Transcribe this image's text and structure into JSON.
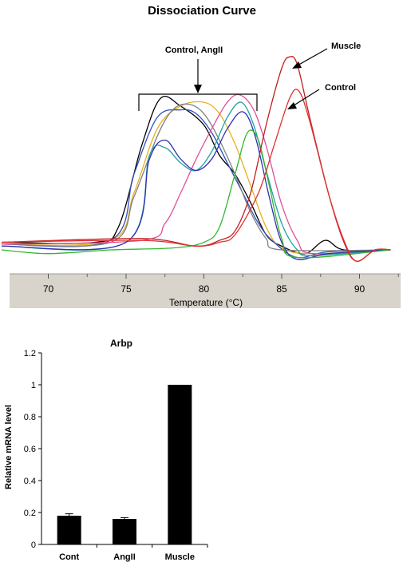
{
  "chart_data": [
    {
      "type": "line",
      "title": "Dissociation Curve",
      "xlabel": "Temperature (°C)",
      "ylabel": "",
      "xlim": [
        67,
        92.5
      ],
      "x_ticks": [
        70,
        75,
        80,
        85,
        90
      ],
      "grid": false,
      "annotations": {
        "bracket_label": "Control, AngII",
        "muscle_label": "Muscle",
        "control_label": "Control"
      },
      "series": [
        {
          "color": "#000000",
          "points": [
            [
              67,
              0.04
            ],
            [
              73,
              0.04
            ],
            [
              74.5,
              0.12
            ],
            [
              76,
              0.55
            ],
            [
              77.2,
              0.8
            ],
            [
              78.5,
              0.76
            ],
            [
              80,
              0.66
            ],
            [
              81,
              0.5
            ],
            [
              82,
              0.4
            ],
            [
              83,
              0.25
            ],
            [
              84,
              0.08
            ],
            [
              85,
              0.02
            ],
            [
              86.5,
              -0.02
            ],
            [
              87.8,
              0.05
            ],
            [
              89,
              0.0
            ],
            [
              92,
              0
            ]
          ]
        },
        {
          "color": "#e8b020",
          "points": [
            [
              67,
              0.03
            ],
            [
              74,
              0.05
            ],
            [
              75.5,
              0.3
            ],
            [
              77,
              0.64
            ],
            [
              78.5,
              0.76
            ],
            [
              80,
              0.78
            ],
            [
              81,
              0.72
            ],
            [
              82,
              0.56
            ],
            [
              83,
              0.34
            ],
            [
              84,
              0.12
            ],
            [
              85,
              0.01
            ],
            [
              87,
              -0.02
            ],
            [
              92,
              0
            ]
          ]
        },
        {
          "color": "#3050c0",
          "points": [
            [
              67,
              0.03
            ],
            [
              74,
              0.05
            ],
            [
              75.5,
              0.4
            ],
            [
              77,
              0.7
            ],
            [
              78.5,
              0.74
            ],
            [
              79.5,
              0.72
            ],
            [
              80.5,
              0.62
            ],
            [
              81.5,
              0.46
            ],
            [
              82.5,
              0.3
            ],
            [
              83.5,
              0.14
            ],
            [
              84.5,
              0.04
            ],
            [
              86,
              -0.04
            ],
            [
              88,
              -0.01
            ],
            [
              92,
              0
            ]
          ]
        },
        {
          "color": "#808080",
          "points": [
            [
              67,
              0.03
            ],
            [
              74,
              0.04
            ],
            [
              75.5,
              0.28
            ],
            [
              77,
              0.6
            ],
            [
              78,
              0.74
            ],
            [
              79,
              0.77
            ],
            [
              80,
              0.72
            ],
            [
              81,
              0.58
            ],
            [
              82,
              0.4
            ],
            [
              83,
              0.2
            ],
            [
              84,
              0.06
            ],
            [
              85,
              0.0
            ],
            [
              92,
              0
            ]
          ]
        },
        {
          "color": "#e0509a",
          "points": [
            [
              67,
              0.03
            ],
            [
              76,
              0.05
            ],
            [
              77.5,
              0.14
            ],
            [
              78.5,
              0.3
            ],
            [
              79.5,
              0.48
            ],
            [
              80.5,
              0.64
            ],
            [
              81.5,
              0.78
            ],
            [
              82.3,
              0.82
            ],
            [
              83.2,
              0.74
            ],
            [
              84,
              0.55
            ],
            [
              85,
              0.24
            ],
            [
              86,
              0.05
            ],
            [
              87,
              -0.02
            ],
            [
              92,
              0
            ]
          ]
        },
        {
          "color": "#20a0a0",
          "points": [
            [
              67,
              0.02
            ],
            [
              75,
              0.04
            ],
            [
              76.5,
              0.5
            ],
            [
              77.5,
              0.54
            ],
            [
              78.5,
              0.46
            ],
            [
              79.5,
              0.42
            ],
            [
              80.5,
              0.52
            ],
            [
              81.5,
              0.7
            ],
            [
              82.4,
              0.78
            ],
            [
              83.2,
              0.66
            ],
            [
              84,
              0.42
            ],
            [
              85,
              0.14
            ],
            [
              86,
              0.0
            ],
            [
              87,
              -0.03
            ],
            [
              92,
              0
            ]
          ]
        },
        {
          "color": "#2f2fb0",
          "points": [
            [
              67,
              0.02
            ],
            [
              75,
              0.04
            ],
            [
              76.5,
              0.48
            ],
            [
              77.5,
              0.58
            ],
            [
              78.5,
              0.48
            ],
            [
              79.5,
              0.42
            ],
            [
              80.5,
              0.48
            ],
            [
              81.5,
              0.64
            ],
            [
              82.5,
              0.73
            ],
            [
              83.3,
              0.6
            ],
            [
              84.2,
              0.28
            ],
            [
              85,
              0.04
            ],
            [
              86,
              -0.05
            ],
            [
              88,
              -0.02
            ],
            [
              92,
              0
            ]
          ]
        },
        {
          "color": "#30b830",
          "points": [
            [
              67,
              0.0
            ],
            [
              70,
              -0.02
            ],
            [
              74,
              0.0
            ],
            [
              78,
              0.01
            ],
            [
              80,
              0.04
            ],
            [
              81,
              0.12
            ],
            [
              82,
              0.4
            ],
            [
              82.8,
              0.62
            ],
            [
              83.5,
              0.58
            ],
            [
              84.2,
              0.34
            ],
            [
              85,
              0.06
            ],
            [
              86,
              -0.04
            ],
            [
              92,
              0
            ]
          ]
        },
        {
          "color": "#c02020",
          "points": [
            [
              67,
              0.04
            ],
            [
              76,
              0.06
            ],
            [
              79.5,
              0.02
            ],
            [
              81,
              0.05
            ],
            [
              82,
              0.1
            ],
            [
              83,
              0.3
            ],
            [
              84,
              0.66
            ],
            [
              85,
              0.96
            ],
            [
              85.5,
              1.02
            ],
            [
              86,
              0.98
            ],
            [
              86.8,
              0.7
            ],
            [
              88,
              0.3
            ],
            [
              89,
              0.04
            ],
            [
              89.8,
              -0.06
            ],
            [
              91,
              0.0
            ],
            [
              92,
              0
            ]
          ]
        },
        {
          "color": "#e03030",
          "points": [
            [
              67,
              0.04
            ],
            [
              76,
              0.05
            ],
            [
              79.5,
              0.02
            ],
            [
              81,
              0.04
            ],
            [
              82,
              0.08
            ],
            [
              83.5,
              0.3
            ],
            [
              84.5,
              0.55
            ],
            [
              85.5,
              0.8
            ],
            [
              86.1,
              0.84
            ],
            [
              86.8,
              0.68
            ],
            [
              88,
              0.3
            ],
            [
              89,
              0.05
            ],
            [
              89.8,
              -0.06
            ],
            [
              91,
              0.0
            ],
            [
              92,
              0
            ]
          ]
        }
      ]
    },
    {
      "type": "bar",
      "title": "Arbp",
      "xlabel": "",
      "ylabel": "Relative mRNA level",
      "categories": [
        "Cont",
        "AngII",
        "Muscle"
      ],
      "values": [
        0.18,
        0.16,
        1.0
      ],
      "error": [
        0.012,
        0.008,
        0.0
      ],
      "ylim": [
        0,
        1.2
      ],
      "y_ticks": [
        "0",
        "0.2",
        "0.4",
        "0.6",
        "0.8",
        "1",
        "1.2"
      ],
      "grid": false
    }
  ]
}
